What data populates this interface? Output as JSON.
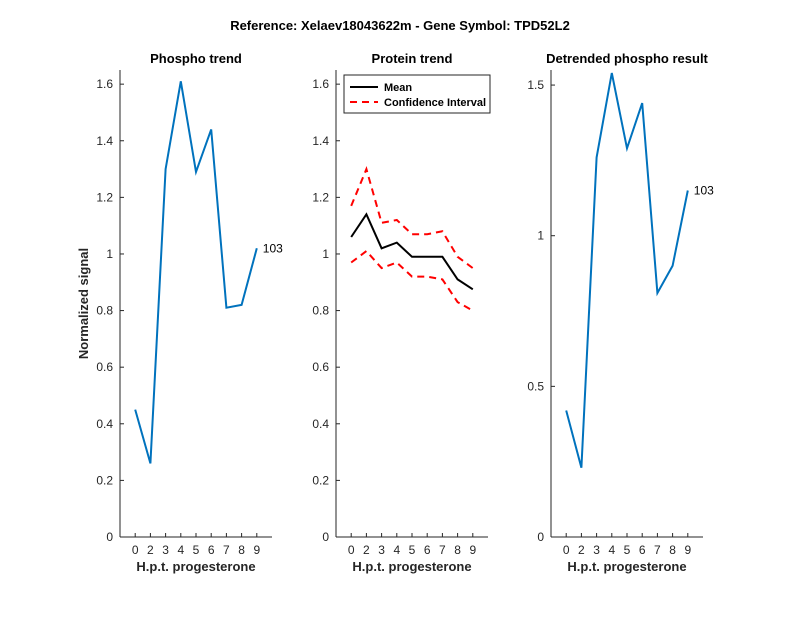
{
  "figure": {
    "suptitle": "Reference:  Xelaev18043622m - Gene Symbol:  TPD52L2"
  },
  "colors": {
    "phospho_line": "#0072BD",
    "mean_line": "#000000",
    "ci_line": "#FF0000",
    "axis": "#262626"
  },
  "chart_data": [
    {
      "id": "phospho",
      "type": "line",
      "title": "Phospho trend",
      "xlabel": "H.p.t. progesterone",
      "ylabel": "Normalized signal",
      "x_tick_labels": [
        "0",
        "2",
        "3",
        "4",
        "5",
        "6",
        "7",
        "8",
        "9"
      ],
      "xlim": [
        0,
        10
      ],
      "ylim": [
        0,
        1.65
      ],
      "y_ticks": [
        0,
        0.2,
        0.4,
        0.6,
        0.8,
        1,
        1.2,
        1.4,
        1.6
      ],
      "y_tick_labels": [
        "0",
        "0.2",
        "0.4",
        "0.6",
        "0.8",
        "1",
        "1.2",
        "1.4",
        "1.6"
      ],
      "series": [
        {
          "values": [
            0.45,
            0.26,
            1.3,
            1.61,
            1.29,
            1.44,
            0.81,
            0.82,
            1.02
          ],
          "color": "#0072BD",
          "dash": ""
        }
      ],
      "end_label": "103"
    },
    {
      "id": "protein",
      "type": "line",
      "title": "Protein trend",
      "xlabel": "H.p.t. progesterone",
      "ylabel": "",
      "x_tick_labels": [
        "0",
        "2",
        "3",
        "4",
        "5",
        "6",
        "7",
        "8",
        "9"
      ],
      "xlim": [
        0,
        10
      ],
      "ylim": [
        0,
        1.65
      ],
      "y_ticks": [
        0,
        0.2,
        0.4,
        0.6,
        0.8,
        1,
        1.2,
        1.4,
        1.6
      ],
      "y_tick_labels": [
        "0",
        "0.2",
        "0.4",
        "0.6",
        "0.8",
        "1",
        "1.2",
        "1.4",
        "1.6"
      ],
      "series": [
        {
          "name": "Mean",
          "values": [
            1.06,
            1.14,
            1.02,
            1.04,
            0.99,
            0.99,
            0.99,
            0.91,
            0.875
          ],
          "color": "#000000",
          "dash": ""
        },
        {
          "name": "Confidence Interval",
          "values": [
            1.17,
            1.3,
            1.11,
            1.12,
            1.07,
            1.07,
            1.08,
            0.99,
            0.95
          ],
          "color": "#FF0000",
          "dash": "7,5"
        },
        {
          "values": [
            0.97,
            1.01,
            0.95,
            0.97,
            0.92,
            0.92,
            0.91,
            0.83,
            0.8
          ],
          "color": "#FF0000",
          "dash": "7,5"
        }
      ],
      "legend": {
        "placement": "top-left",
        "entries": [
          {
            "label": "Mean",
            "color": "#000000",
            "dash": ""
          },
          {
            "label": "Confidence Interval",
            "color": "#FF0000",
            "dash": "7,5"
          }
        ]
      }
    },
    {
      "id": "detrended",
      "type": "line",
      "title": "Detrended phospho result",
      "xlabel": "H.p.t. progesterone",
      "ylabel": "",
      "x_tick_labels": [
        "0",
        "2",
        "3",
        "4",
        "5",
        "6",
        "7",
        "8",
        "9"
      ],
      "xlim": [
        0,
        10
      ],
      "ylim": [
        0,
        1.55
      ],
      "y_ticks": [
        0,
        0.5,
        1,
        1.5
      ],
      "y_tick_labels": [
        "0",
        "0.5",
        "1",
        "1.5"
      ],
      "series": [
        {
          "values": [
            0.42,
            0.23,
            1.26,
            1.54,
            1.29,
            1.44,
            0.81,
            0.9,
            1.15
          ],
          "color": "#0072BD",
          "dash": ""
        }
      ],
      "end_label": "103"
    }
  ]
}
